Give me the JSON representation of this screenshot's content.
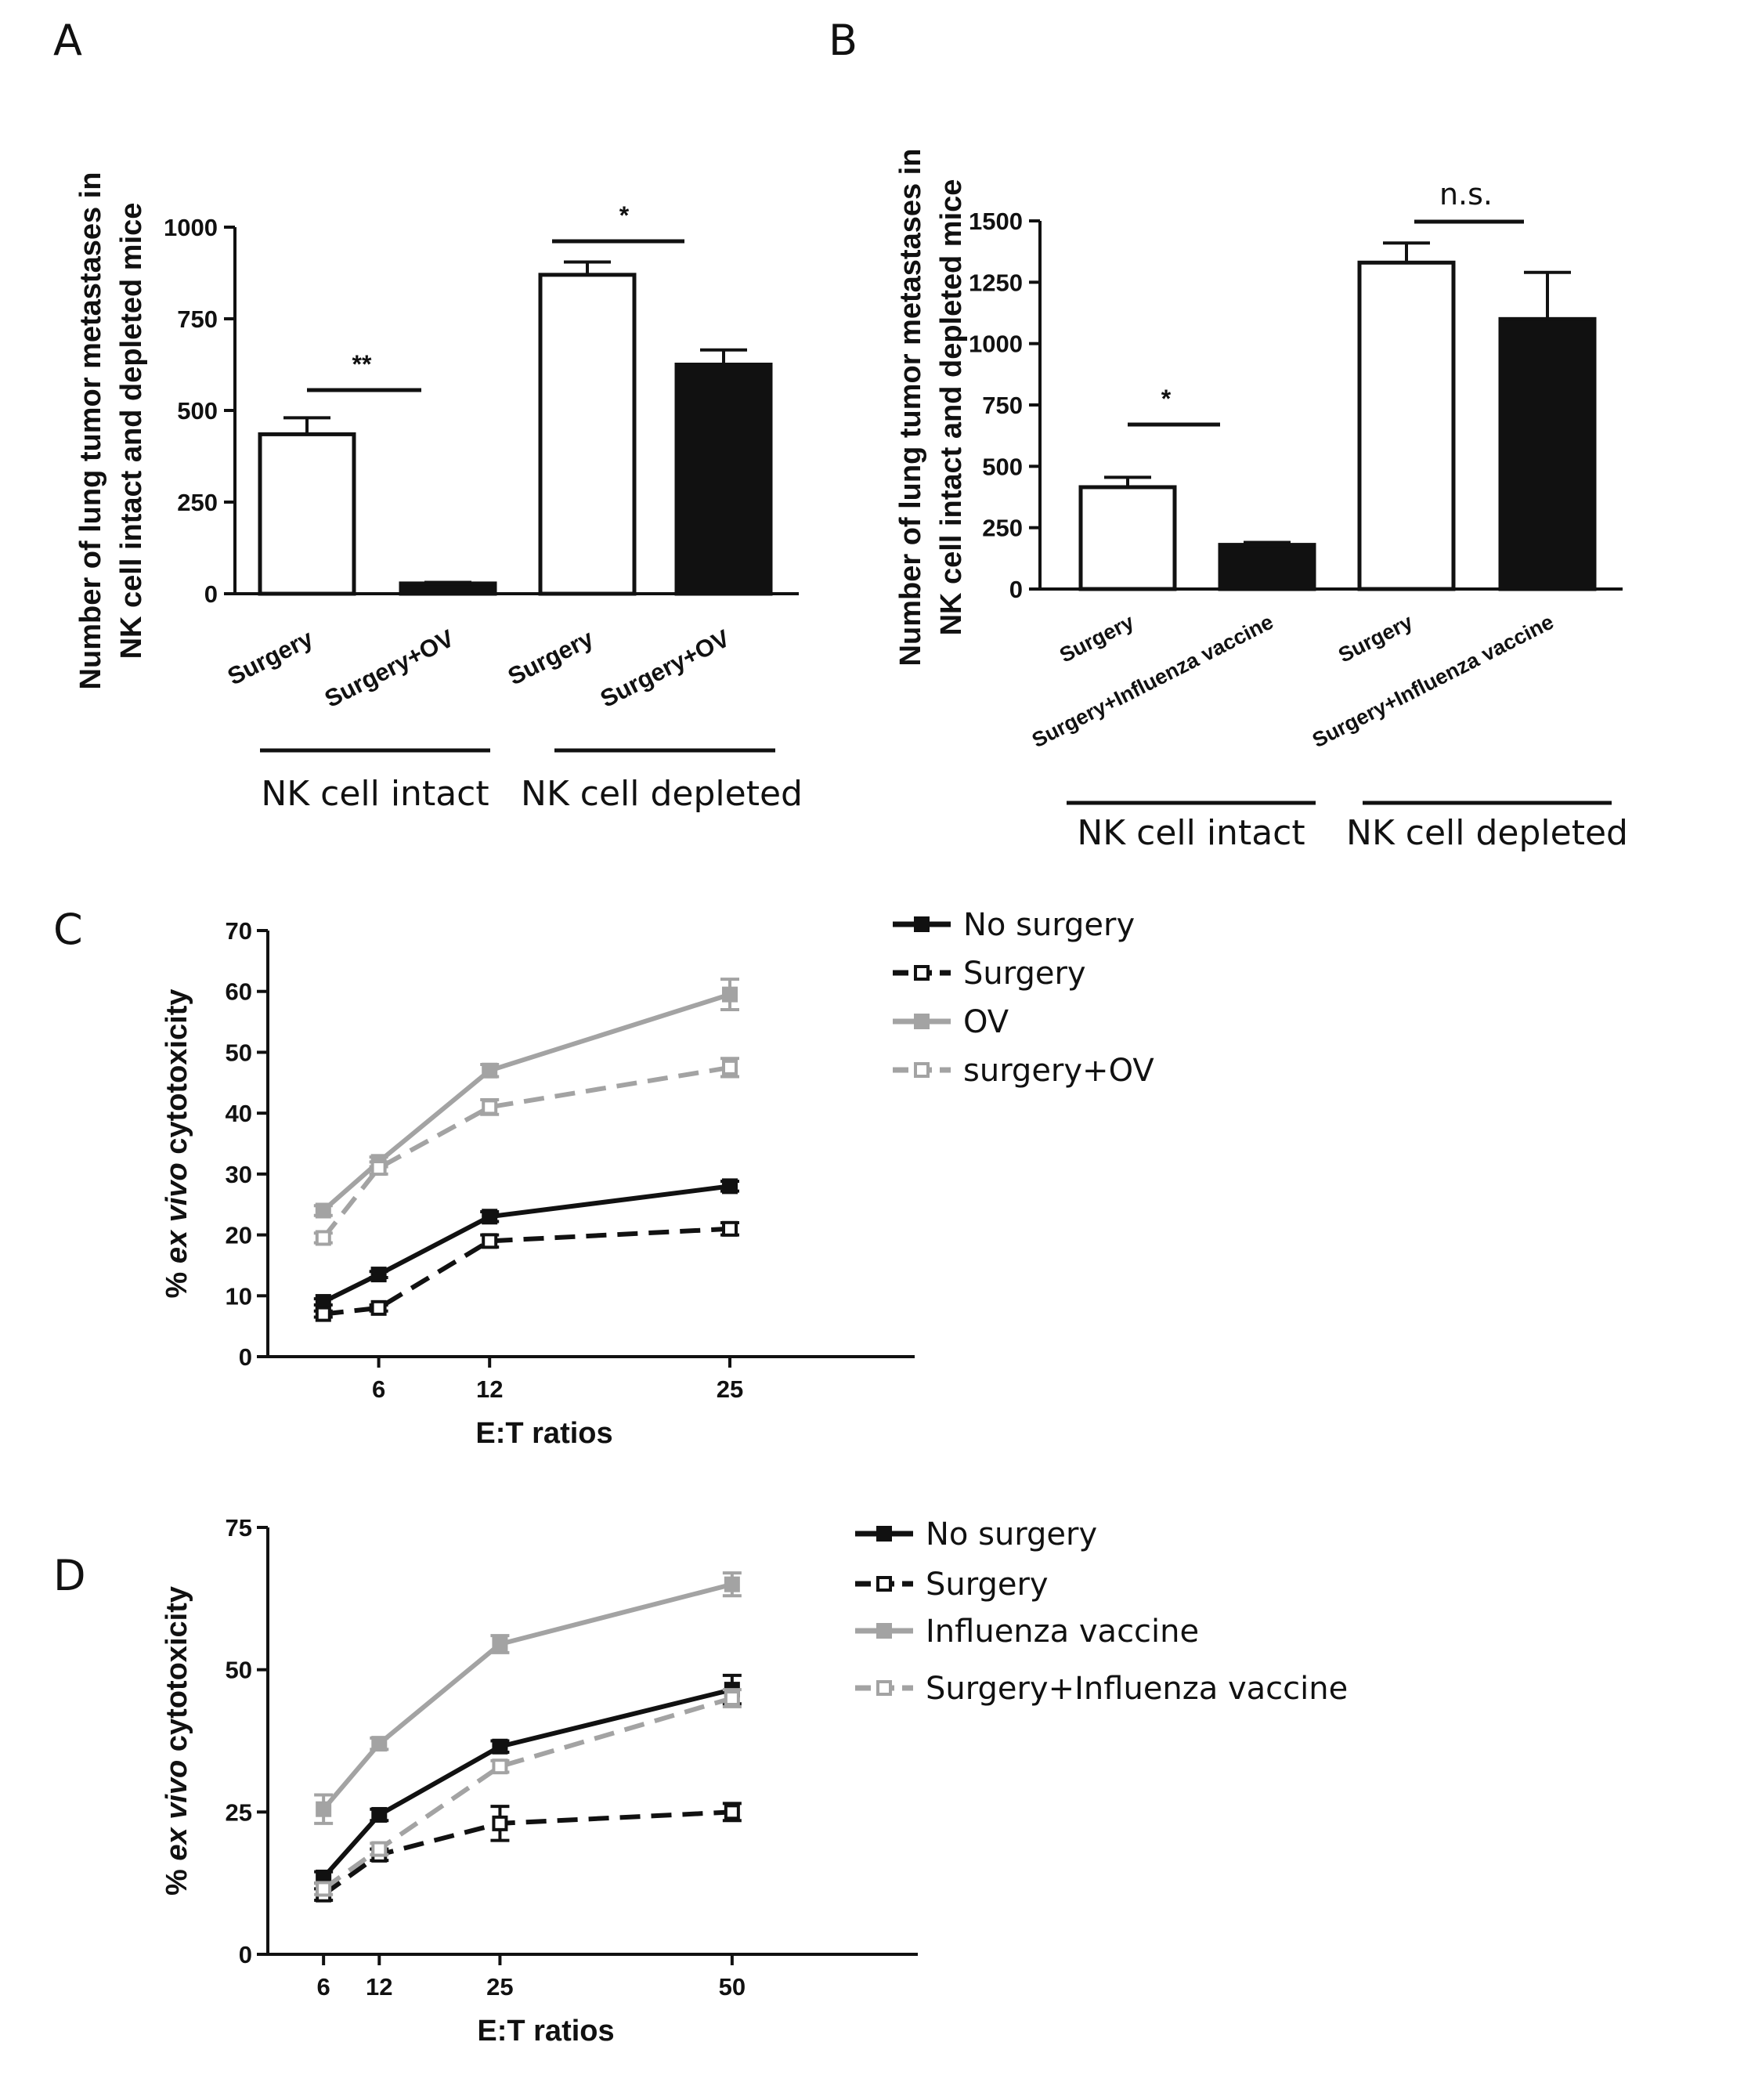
{
  "panels": {
    "A": {
      "label": "A"
    },
    "B": {
      "label": "B"
    },
    "C": {
      "label": "C"
    },
    "D": {
      "label": "D"
    }
  },
  "chart_data": [
    {
      "panel": "A",
      "type": "bar",
      "ylabel_lines": [
        "Number of lung  tumor metastases in",
        "NK cell intact and depleted mice"
      ],
      "ylim": [
        0,
        1000
      ],
      "yticks": [
        "0",
        "250",
        "500",
        "750",
        "1000"
      ],
      "ytick_values": [
        0,
        250,
        500,
        750,
        1000
      ],
      "categories": [
        "Surgery",
        "Surgery+OV",
        "Surgery",
        "Surgery+OV"
      ],
      "values": [
        435,
        28,
        870,
        625
      ],
      "errors": [
        45,
        3,
        35,
        40
      ],
      "fills": [
        "white",
        "black",
        "white",
        "black"
      ],
      "groups": [
        "NK cell intact",
        "NK cell depleted"
      ],
      "significance": [
        {
          "label": "**",
          "between": [
            0,
            1
          ]
        },
        {
          "label": "*",
          "between": [
            2,
            3
          ]
        }
      ]
    },
    {
      "panel": "B",
      "type": "bar",
      "ylabel_lines": [
        "Number of  lung tumor metastases in",
        "NK cell intact and depleted mice"
      ],
      "ylim": [
        0,
        1500
      ],
      "yticks": [
        "0",
        "250",
        "500",
        "750",
        "1000",
        "1250",
        "1500"
      ],
      "ytick_values": [
        0,
        250,
        500,
        750,
        1000,
        1250,
        1500
      ],
      "categories": [
        "Surgery",
        "Surgery+Influenza vaccine",
        "Surgery",
        "Surgery+Influenza vaccine"
      ],
      "values": [
        415,
        180,
        1330,
        1100
      ],
      "errors": [
        40,
        10,
        80,
        190
      ],
      "fills": [
        "white",
        "black",
        "white",
        "black"
      ],
      "groups": [
        "NK cell intact",
        "NK cell depleted"
      ],
      "significance": [
        {
          "label": "*",
          "between": [
            0,
            1
          ]
        },
        {
          "label": "n.s.",
          "between": [
            2,
            3
          ]
        }
      ]
    },
    {
      "panel": "C",
      "type": "line",
      "xlabel": "E:T ratios",
      "ylabel_prefix": "% ",
      "ylabel_italic": "ex vivo",
      "ylabel_suffix": " cytotoxicity",
      "ylim": [
        0,
        70
      ],
      "yticks": [
        "0",
        "10",
        "20",
        "30",
        "40",
        "50",
        "60",
        "70"
      ],
      "ytick_values": [
        0,
        10,
        20,
        30,
        40,
        50,
        60,
        70
      ],
      "xlim": [
        0,
        35
      ],
      "xticks": [
        "6",
        "12",
        "25"
      ],
      "xtick_values": [
        6,
        12,
        25
      ],
      "x": [
        3,
        6,
        12,
        25
      ],
      "series": [
        {
          "name": "No surgery",
          "values": [
            9,
            13.5,
            23,
            28
          ],
          "errors": [
            0.5,
            0.5,
            0.8,
            0.8
          ],
          "color": "#111111",
          "dash": false,
          "filled": true
        },
        {
          "name": "Surgery",
          "values": [
            7,
            8,
            19,
            21
          ],
          "errors": [
            0.5,
            0.5,
            1,
            1
          ],
          "color": "#111111",
          "dash": true,
          "filled": false
        },
        {
          "name": "OV",
          "values": [
            24,
            32,
            47,
            59.5
          ],
          "errors": [
            0.8,
            0.8,
            1,
            2.5
          ],
          "color": "#a3a3a3",
          "dash": false,
          "filled": true
        },
        {
          "name": "surgery+OV",
          "values": [
            19.5,
            31,
            41,
            47.5
          ],
          "errors": [
            0.8,
            1,
            1.2,
            1.5
          ],
          "color": "#a3a3a3",
          "dash": true,
          "filled": false
        }
      ]
    },
    {
      "panel": "D",
      "type": "line",
      "xlabel": "E:T ratios",
      "ylabel_prefix": "% ",
      "ylabel_italic": "ex vivo",
      "ylabel_suffix": " cytotoxicity",
      "ylim": [
        0,
        75
      ],
      "yticks": [
        "0",
        "25",
        "50",
        "75"
      ],
      "ytick_values": [
        0,
        25,
        50,
        75
      ],
      "xlim": [
        0,
        70
      ],
      "xticks": [
        "6",
        "12",
        "25",
        "50"
      ],
      "xtick_values": [
        6,
        12,
        25,
        50
      ],
      "x": [
        6,
        12,
        25,
        50
      ],
      "series": [
        {
          "name": "No surgery",
          "values": [
            13.5,
            24.5,
            36.5,
            46.5
          ],
          "errors": [
            1,
            1,
            1,
            2.5
          ],
          "color": "#111111",
          "dash": false,
          "filled": true
        },
        {
          "name": "Surgery",
          "values": [
            10.5,
            17.5,
            23,
            25
          ],
          "errors": [
            1,
            1,
            3,
            1.5
          ],
          "color": "#111111",
          "dash": true,
          "filled": false
        },
        {
          "name": "Influenza vaccine",
          "values": [
            25.5,
            37,
            54.5,
            65
          ],
          "errors": [
            2.5,
            1,
            1.5,
            2
          ],
          "color": "#a3a3a3",
          "dash": false,
          "filled": true
        },
        {
          "name": "Surgery+Influenza vaccine",
          "values": [
            11.5,
            18.5,
            33,
            45
          ],
          "errors": [
            1,
            1,
            1,
            1.5
          ],
          "color": "#a3a3a3",
          "dash": true,
          "filled": false
        }
      ]
    }
  ]
}
